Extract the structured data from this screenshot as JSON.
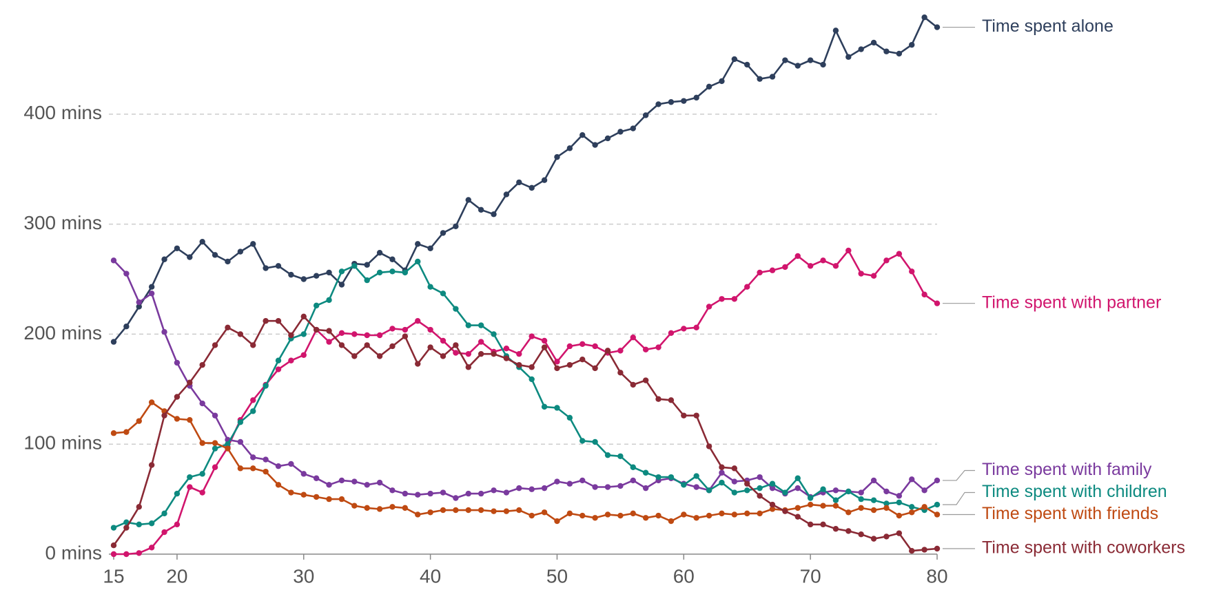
{
  "chart_data": {
    "type": "line",
    "x": [
      15,
      16,
      17,
      18,
      19,
      20,
      21,
      22,
      23,
      24,
      25,
      26,
      27,
      28,
      29,
      30,
      31,
      32,
      33,
      34,
      35,
      36,
      37,
      38,
      39,
      40,
      41,
      42,
      43,
      44,
      45,
      46,
      47,
      48,
      49,
      50,
      51,
      52,
      53,
      54,
      55,
      56,
      57,
      58,
      59,
      60,
      61,
      62,
      63,
      64,
      65,
      66,
      67,
      68,
      69,
      70,
      71,
      72,
      73,
      74,
      75,
      76,
      77,
      78,
      79,
      80
    ],
    "xlim": [
      15,
      80
    ],
    "xticks": [
      15,
      20,
      30,
      40,
      50,
      60,
      70,
      80
    ],
    "ylim": [
      0,
      490
    ],
    "yticks": [
      {
        "value": 0,
        "label": "0 mins"
      },
      {
        "value": 100,
        "label": "100 mins"
      },
      {
        "value": 200,
        "label": "200 mins"
      },
      {
        "value": 300,
        "label": "300 mins"
      },
      {
        "value": 400,
        "label": "400 mins"
      }
    ],
    "grid": true,
    "series": [
      {
        "name": "Time spent alone",
        "color": "#2e3f5c",
        "values": [
          193,
          207,
          225,
          243,
          268,
          278,
          270,
          284,
          272,
          266,
          275,
          282,
          260,
          262,
          254,
          250,
          253,
          256,
          245,
          264,
          263,
          274,
          268,
          258,
          282,
          278,
          292,
          298,
          322,
          313,
          309,
          327,
          338,
          333,
          340,
          361,
          369,
          381,
          372,
          378,
          384,
          387,
          399,
          409,
          411,
          412,
          415,
          425,
          430,
          450,
          445,
          432,
          434,
          449,
          444,
          449,
          445,
          476,
          452,
          459,
          465,
          457,
          455,
          463,
          488,
          479
        ]
      },
      {
        "name": "Time spent with partner",
        "color": "#d1156d",
        "values": [
          0,
          0,
          1,
          6,
          20,
          27,
          61,
          56,
          79,
          97,
          122,
          140,
          154,
          168,
          176,
          181,
          204,
          193,
          201,
          200,
          199,
          199,
          205,
          204,
          212,
          204,
          194,
          183,
          182,
          193,
          184,
          187,
          182,
          198,
          194,
          175,
          189,
          191,
          189,
          183,
          185,
          197,
          186,
          188,
          201,
          205,
          206,
          225,
          232,
          232,
          243,
          256,
          258,
          261,
          271,
          262,
          267,
          262,
          276,
          255,
          253,
          267,
          273,
          257,
          236,
          228
        ]
      },
      {
        "name": "Time spent with family",
        "color": "#7a3a9e",
        "values": [
          267,
          255,
          229,
          237,
          202,
          174,
          153,
          137,
          126,
          104,
          102,
          88,
          86,
          80,
          82,
          73,
          69,
          63,
          67,
          66,
          63,
          65,
          58,
          55,
          54,
          55,
          56,
          51,
          55,
          55,
          58,
          56,
          60,
          59,
          60,
          66,
          64,
          67,
          61,
          61,
          62,
          67,
          60,
          67,
          69,
          64,
          61,
          58,
          74,
          66,
          67,
          70,
          60,
          55,
          60,
          52,
          56,
          58,
          57,
          56,
          67,
          57,
          53,
          68,
          58,
          67
        ]
      },
      {
        "name": "Time spent with children",
        "color": "#0d8a80",
        "values": [
          24,
          29,
          27,
          28,
          37,
          55,
          70,
          73,
          96,
          100,
          120,
          130,
          153,
          176,
          196,
          200,
          226,
          231,
          257,
          262,
          249,
          256,
          257,
          256,
          266,
          243,
          237,
          223,
          208,
          208,
          200,
          180,
          170,
          159,
          134,
          133,
          124,
          103,
          102,
          90,
          89,
          79,
          74,
          70,
          70,
          63,
          71,
          58,
          65,
          56,
          58,
          60,
          64,
          56,
          69,
          51,
          59,
          49,
          57,
          50,
          49,
          46,
          47,
          43,
          40,
          45
        ]
      },
      {
        "name": "Time spent with friends",
        "color": "#bf4a12",
        "values": [
          110,
          111,
          121,
          138,
          130,
          123,
          122,
          101,
          101,
          96,
          78,
          78,
          75,
          63,
          56,
          54,
          52,
          50,
          50,
          44,
          42,
          41,
          43,
          42,
          36,
          38,
          40,
          40,
          40,
          40,
          39,
          39,
          40,
          35,
          38,
          30,
          37,
          35,
          33,
          36,
          35,
          37,
          33,
          35,
          30,
          36,
          33,
          35,
          37,
          36,
          37,
          37,
          41,
          40,
          42,
          45,
          44,
          44,
          38,
          42,
          40,
          42,
          35,
          38,
          43,
          36
        ]
      },
      {
        "name": "Time spent with coworkers",
        "color": "#8a2a35",
        "values": [
          8,
          24,
          43,
          81,
          126,
          143,
          156,
          172,
          190,
          206,
          200,
          190,
          212,
          212,
          199,
          216,
          204,
          203,
          190,
          180,
          190,
          180,
          189,
          198,
          173,
          188,
          180,
          190,
          170,
          182,
          182,
          178,
          172,
          170,
          188,
          169,
          172,
          177,
          169,
          185,
          165,
          154,
          158,
          141,
          140,
          126,
          126,
          98,
          79,
          78,
          64,
          53,
          45,
          39,
          34,
          27,
          27,
          23,
          21,
          18,
          14,
          16,
          19,
          3,
          4,
          5
        ]
      }
    ]
  }
}
